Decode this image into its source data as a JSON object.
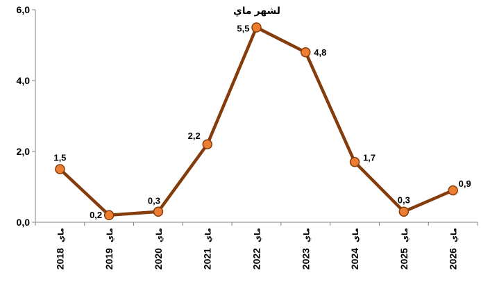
{
  "chart_data": {
    "type": "line",
    "title_lines": [
      "لشهر ماي"
    ],
    "categories": [
      "ماي 2018",
      "ماي 2019",
      "ماي 2020",
      "ماي 2021",
      "ماي 2022",
      "ماي 2023",
      "ماي 2024",
      "ماي 2025",
      "ماي 2026"
    ],
    "category_labels": [
      {
        "month": "ماي",
        "year": "2018"
      },
      {
        "month": "ماي",
        "year": "2019"
      },
      {
        "month": "ماي",
        "year": "2020"
      },
      {
        "month": "ماي",
        "year": "2021"
      },
      {
        "month": "ماي",
        "year": "2022"
      },
      {
        "month": "ماي",
        "year": "2023"
      },
      {
        "month": "ماي",
        "year": "2024"
      },
      {
        "month": "ماي",
        "year": "2025"
      },
      {
        "month": "ماي",
        "year": "2026"
      }
    ],
    "series": [
      {
        "values": [
          1.5,
          0.2,
          0.3,
          2.2,
          5.5,
          4.8,
          1.7,
          0.3,
          0.9
        ],
        "value_labels": [
          "1,5",
          "0,2",
          "0,3",
          "2,2",
          "5,5",
          "4,8",
          "1,7",
          "0,3",
          "0,9"
        ],
        "line_color": "#843c0c",
        "marker_fill": "#ed7d31",
        "marker_edge": "#843c0c"
      }
    ],
    "yticks": [
      "0,0",
      "2,0",
      "4,0",
      "6,0"
    ],
    "ylim": [
      0,
      6
    ],
    "ytick_values": [
      0,
      2,
      4,
      6
    ],
    "xlabel": "",
    "ylabel": "",
    "grid": false,
    "legend": "none"
  }
}
